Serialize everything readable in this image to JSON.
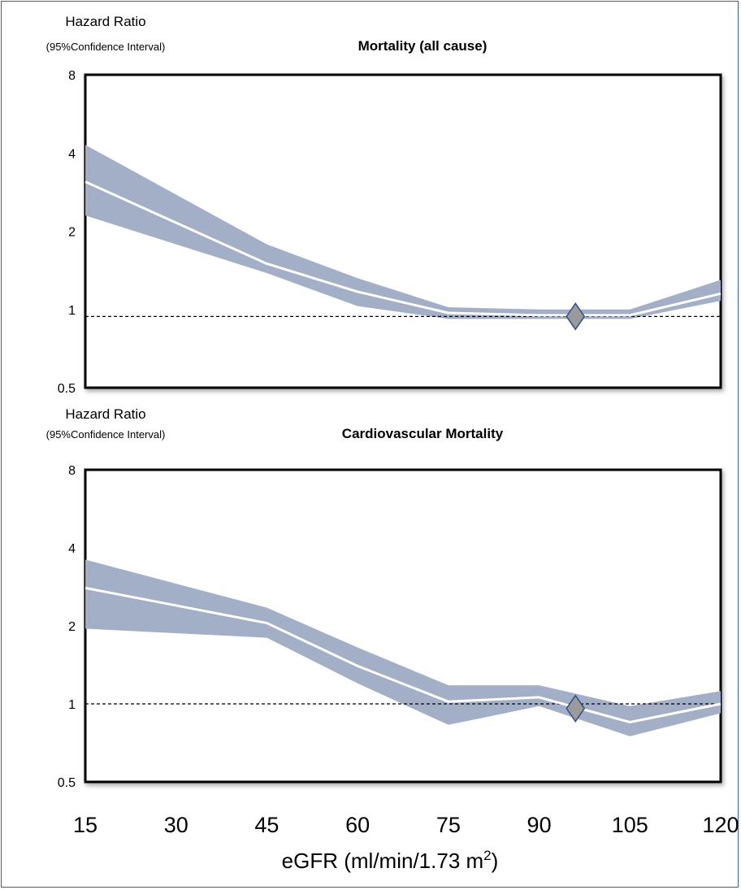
{
  "colors": {
    "band": "#a3aec7",
    "line": "#ffffff",
    "reference": "#000000",
    "marker_fill": "#9a9a9a",
    "marker_stroke": "#2f4f8f",
    "frame": "#3f5f8f"
  },
  "x_axis": {
    "label_main": "eGFR (ml/min/1.73 m",
    "label_sup": "2",
    "label_end": ")",
    "ticks": [
      "15",
      "30",
      "45",
      "60",
      "75",
      "90",
      "105",
      "120"
    ]
  },
  "chart_data": [
    {
      "type": "line",
      "title": "Mortality (all cause)",
      "ylabel": "Hazard Ratio",
      "ylabel_sub": "(95%Confidence Interval)",
      "y_scale": "log2",
      "ylim": [
        0.5,
        8
      ],
      "y_ticks": [
        "0.5",
        "1",
        "2",
        "4",
        "8"
      ],
      "xlim": [
        15,
        120
      ],
      "reference_line": 0.94,
      "reference_marker": {
        "x": 96,
        "y": 0.94
      },
      "series": [
        {
          "x": [
            15,
            45,
            60,
            75,
            90,
            105,
            120
          ],
          "estimate": [
            3.1,
            1.5,
            1.17,
            0.97,
            0.95,
            0.95,
            1.15
          ],
          "lower": [
            2.3,
            1.38,
            1.03,
            0.92,
            0.92,
            0.92,
            1.08
          ],
          "upper": [
            4.3,
            1.78,
            1.32,
            1.02,
            1.0,
            1.0,
            1.3
          ]
        }
      ]
    },
    {
      "type": "line",
      "title": "Cardiovascular Mortality",
      "ylabel": "Hazard Ratio",
      "ylabel_sub": "(95%Confidence Interval)",
      "y_scale": "log2",
      "ylim": [
        0.5,
        8
      ],
      "y_ticks": [
        "0.5",
        "1",
        "2",
        "4",
        "8"
      ],
      "xlim": [
        15,
        120
      ],
      "reference_line": 1.0,
      "reference_marker": {
        "x": 96,
        "y": 0.96
      },
      "series": [
        {
          "x": [
            15,
            45,
            60,
            75,
            90,
            105,
            120
          ],
          "estimate": [
            2.8,
            2.05,
            1.4,
            1.02,
            1.06,
            0.85,
            1.0
          ],
          "lower": [
            1.95,
            1.8,
            1.2,
            0.83,
            0.98,
            0.75,
            0.92
          ],
          "upper": [
            3.6,
            2.35,
            1.65,
            1.18,
            1.18,
            0.98,
            1.12
          ]
        }
      ]
    }
  ]
}
